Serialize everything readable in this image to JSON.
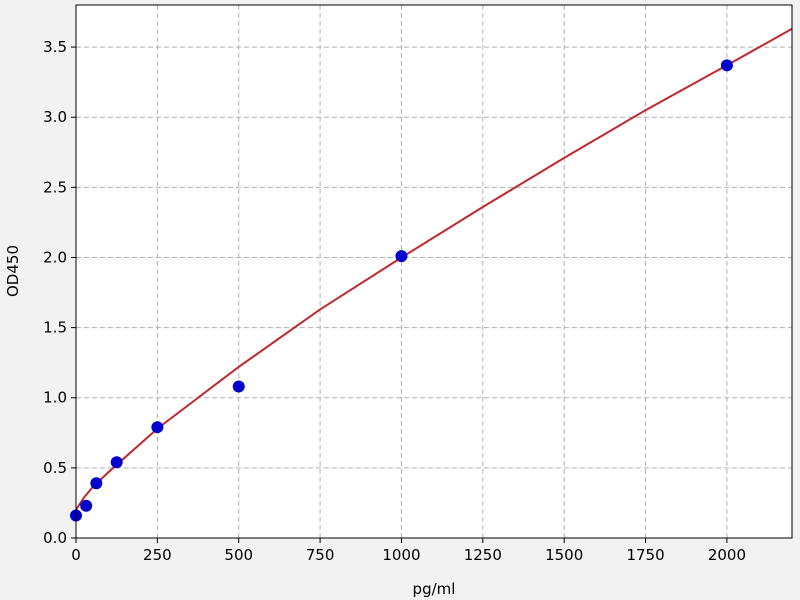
{
  "chart_data": {
    "type": "scatter",
    "title": "",
    "xlabel": "pg/ml",
    "ylabel": "OD450",
    "xlim": [
      0,
      2200
    ],
    "ylim": [
      0,
      3.8
    ],
    "grid": true,
    "x_ticks": [
      0,
      250,
      500,
      750,
      1000,
      1250,
      1500,
      1750,
      2000
    ],
    "y_ticks": [
      0.0,
      0.5,
      1.0,
      1.5,
      2.0,
      2.5,
      3.0,
      3.5
    ],
    "points": {
      "x": [
        0,
        31.25,
        62.5,
        125,
        250,
        500,
        1000,
        2000
      ],
      "y": [
        0.16,
        0.23,
        0.39,
        0.54,
        0.79,
        1.08,
        2.01,
        3.37
      ],
      "color": "#0000cc"
    },
    "fit_curve": {
      "x": [
        0,
        25,
        50,
        100,
        250,
        500,
        750,
        1000,
        1250,
        1500,
        1750,
        2000,
        2200
      ],
      "y": [
        0.2,
        0.29,
        0.36,
        0.47,
        0.78,
        1.22,
        1.63,
        2.0,
        2.36,
        2.71,
        3.05,
        3.37,
        3.63
      ],
      "color": "#c0282d"
    }
  }
}
